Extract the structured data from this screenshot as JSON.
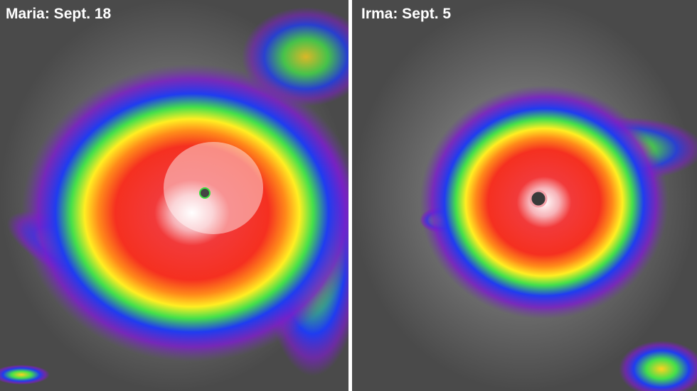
{
  "panels": [
    {
      "label": "Maria: Sept. 18"
    },
    {
      "label": "Irma: Sept. 5"
    }
  ]
}
